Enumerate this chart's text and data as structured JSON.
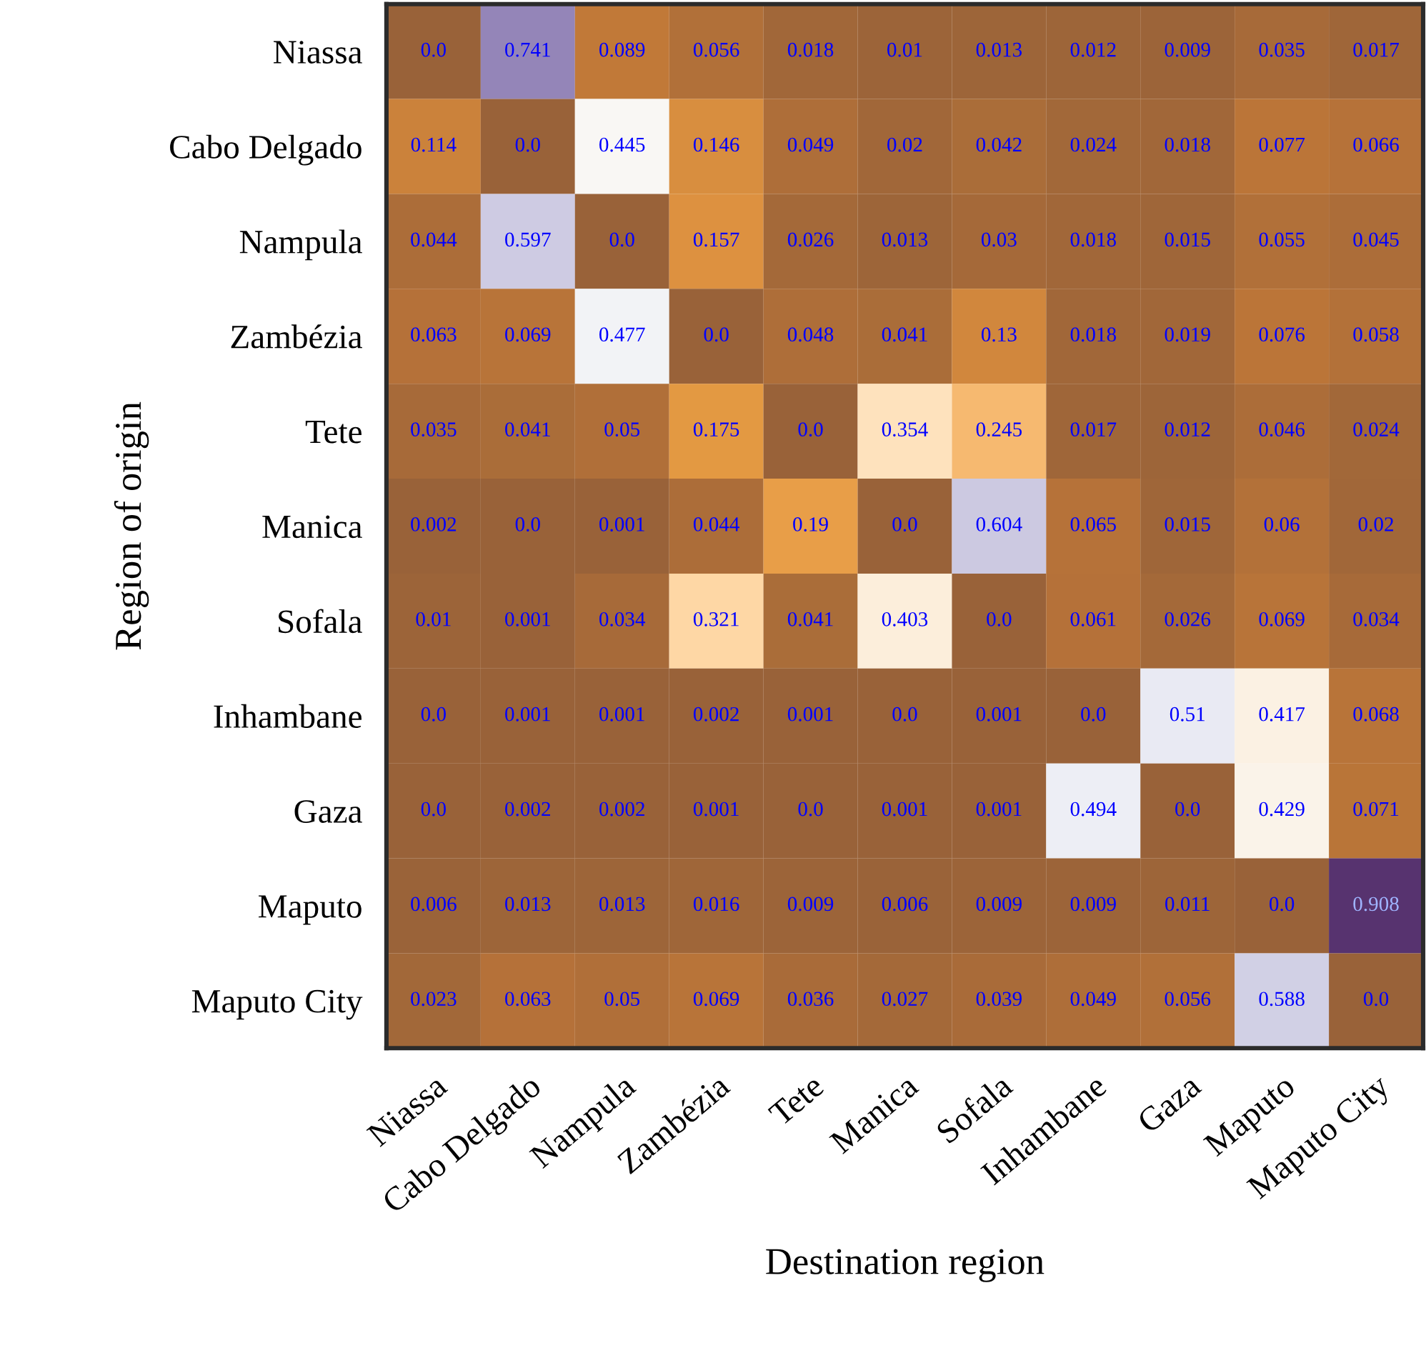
{
  "chart_data": {
    "type": "heatmap",
    "xlabel": "Destination region",
    "ylabel": "Region of origin",
    "categories": [
      "Niassa",
      "Cabo Delgado",
      "Nampula",
      "Zambézia",
      "Tete",
      "Manica",
      "Sofala",
      "Inhambane",
      "Gaza",
      "Maputo",
      "Maputo City"
    ],
    "y_categories": [
      "Niassa",
      "Cabo Delgado",
      "Nampula",
      "Zambézia",
      "Tete",
      "Manica",
      "Sofala",
      "Inhambane",
      "Gaza",
      "Maputo",
      "Maputo City"
    ],
    "cells": [
      [
        0.0,
        0.741,
        0.089,
        0.056,
        0.018,
        0.01,
        0.013,
        0.012,
        0.009,
        0.035,
        0.017
      ],
      [
        0.114,
        0.0,
        0.445,
        0.146,
        0.049,
        0.02,
        0.042,
        0.024,
        0.018,
        0.077,
        0.066
      ],
      [
        0.044,
        0.597,
        0.0,
        0.157,
        0.026,
        0.013,
        0.03,
        0.018,
        0.015,
        0.055,
        0.045
      ],
      [
        0.063,
        0.069,
        0.477,
        0.0,
        0.048,
        0.041,
        0.13,
        0.018,
        0.019,
        0.076,
        0.058
      ],
      [
        0.035,
        0.041,
        0.05,
        0.175,
        0.0,
        0.354,
        0.245,
        0.017,
        0.012,
        0.046,
        0.024
      ],
      [
        0.002,
        0.0,
        0.001,
        0.044,
        0.19,
        0.0,
        0.604,
        0.065,
        0.015,
        0.06,
        0.02
      ],
      [
        0.01,
        0.001,
        0.034,
        0.321,
        0.041,
        0.403,
        0.0,
        0.061,
        0.026,
        0.069,
        0.034
      ],
      [
        0.0,
        0.001,
        0.001,
        0.002,
        0.001,
        0.0,
        0.001,
        0.0,
        0.51,
        0.417,
        0.068
      ],
      [
        0.0,
        0.002,
        0.002,
        0.001,
        0.0,
        0.001,
        0.001,
        0.494,
        0.0,
        0.429,
        0.071
      ],
      [
        0.006,
        0.013,
        0.013,
        0.016,
        0.009,
        0.006,
        0.009,
        0.009,
        0.011,
        0.0,
        0.908
      ],
      [
        0.023,
        0.063,
        0.05,
        0.069,
        0.036,
        0.027,
        0.039,
        0.049,
        0.056,
        0.588,
        0.0
      ]
    ],
    "cell_labels": [
      [
        "0.0",
        "0.741",
        "0.089",
        "0.056",
        "0.018",
        "0.01",
        "0.013",
        "0.012",
        "0.009",
        "0.035",
        "0.017"
      ],
      [
        "0.114",
        "0.0",
        "0.445",
        "0.146",
        "0.049",
        "0.02",
        "0.042",
        "0.024",
        "0.018",
        "0.077",
        "0.066"
      ],
      [
        "0.044",
        "0.597",
        "0.0",
        "0.157",
        "0.026",
        "0.013",
        "0.03",
        "0.018",
        "0.015",
        "0.055",
        "0.045"
      ],
      [
        "0.063",
        "0.069",
        "0.477",
        "0.0",
        "0.048",
        "0.041",
        "0.13",
        "0.018",
        "0.019",
        "0.076",
        "0.058"
      ],
      [
        "0.035",
        "0.041",
        "0.05",
        "0.175",
        "0.0",
        "0.354",
        "0.245",
        "0.017",
        "0.012",
        "0.046",
        "0.024"
      ],
      [
        "0.002",
        "0.0",
        "0.001",
        "0.044",
        "0.19",
        "0.0",
        "0.604",
        "0.065",
        "0.015",
        "0.06",
        "0.02"
      ],
      [
        "0.01",
        "0.001",
        "0.034",
        "0.321",
        "0.041",
        "0.403",
        "0.0",
        "0.061",
        "0.026",
        "0.069",
        "0.034"
      ],
      [
        "0.0",
        "0.001",
        "0.001",
        "0.002",
        "0.001",
        "0.0",
        "0.001",
        "0.0",
        "0.51",
        "0.417",
        "0.068"
      ],
      [
        "0.0",
        "0.002",
        "0.002",
        "0.001",
        "0.0",
        "0.001",
        "0.001",
        "0.494",
        "0.0",
        "0.429",
        "0.071"
      ],
      [
        "0.006",
        "0.013",
        "0.013",
        "0.016",
        "0.009",
        "0.006",
        "0.009",
        "0.009",
        "0.011",
        "0.0",
        "0.908"
      ],
      [
        "0.023",
        "0.063",
        "0.05",
        "0.069",
        "0.036",
        "0.027",
        "0.039",
        "0.049",
        "0.056",
        "0.588",
        "0.0"
      ]
    ]
  }
}
